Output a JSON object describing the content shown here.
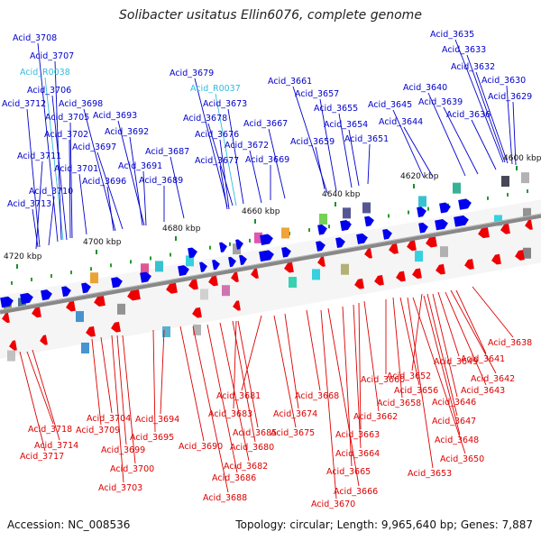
{
  "title": "Solibacter usitatus Ellin6076, complete genome",
  "accession_label": "Accession: NC_008536",
  "summary_label": "Topology: circular; Length: 9,965,640 bp; Genes: 7,887",
  "colors": {
    "forward_label": "#0000cc",
    "reverse_label": "#dd0000",
    "rna_label": "#33bbdd",
    "backbone": "#888888",
    "forward_gene": "#0000ee",
    "reverse_gene": "#ee0000"
  },
  "scale_labels": [
    {
      "text": "4600 kbp"
    },
    {
      "text": "4620 kbp"
    },
    {
      "text": "4640 kbp"
    },
    {
      "text": "4660 kbp"
    },
    {
      "text": "4680 kbp"
    },
    {
      "text": "4700 kbp"
    },
    {
      "text": "4720 kbp"
    }
  ],
  "forward_labels": [
    {
      "text": "Acid_3635",
      "type": "gene"
    },
    {
      "text": "Acid_3633",
      "type": "gene"
    },
    {
      "text": "Acid_3632",
      "type": "gene"
    },
    {
      "text": "Acid_3630",
      "type": "gene"
    },
    {
      "text": "Acid_3629",
      "type": "gene"
    },
    {
      "text": "Acid_3640",
      "type": "gene"
    },
    {
      "text": "Acid_3639",
      "type": "gene"
    },
    {
      "text": "Acid_3636",
      "type": "gene"
    },
    {
      "text": "Acid_3645",
      "type": "gene"
    },
    {
      "text": "Acid_3644",
      "type": "gene"
    },
    {
      "text": "Acid_3661",
      "type": "gene"
    },
    {
      "text": "Acid_3657",
      "type": "gene"
    },
    {
      "text": "Acid_3655",
      "type": "gene"
    },
    {
      "text": "Acid_3654",
      "type": "gene"
    },
    {
      "text": "Acid_3651",
      "type": "gene"
    },
    {
      "text": "Acid_3659",
      "type": "gene"
    },
    {
      "text": "Acid_3679",
      "type": "gene"
    },
    {
      "text": "Acid_R0037",
      "type": "rna"
    },
    {
      "text": "Acid_3673",
      "type": "gene"
    },
    {
      "text": "Acid_3678",
      "type": "gene"
    },
    {
      "text": "Acid_3667",
      "type": "gene"
    },
    {
      "text": "Acid_3676",
      "type": "gene"
    },
    {
      "text": "Acid_3672",
      "type": "gene"
    },
    {
      "text": "Acid_3677",
      "type": "gene"
    },
    {
      "text": "Acid_3669",
      "type": "gene"
    },
    {
      "text": "Acid_3687",
      "type": "gene"
    },
    {
      "text": "Acid_3691",
      "type": "gene"
    },
    {
      "text": "Acid_3689",
      "type": "gene"
    },
    {
      "text": "Acid_3693",
      "type": "gene"
    },
    {
      "text": "Acid_3692",
      "type": "gene"
    },
    {
      "text": "Acid_3697",
      "type": "gene"
    },
    {
      "text": "Acid_3696",
      "type": "gene"
    },
    {
      "text": "Acid_3698",
      "type": "gene"
    },
    {
      "text": "Acid_3705",
      "type": "gene"
    },
    {
      "text": "Acid_3702",
      "type": "gene"
    },
    {
      "text": "Acid_3701",
      "type": "gene"
    },
    {
      "text": "Acid_3706",
      "type": "gene"
    },
    {
      "text": "Acid_R0038",
      "type": "rna"
    },
    {
      "text": "Acid_3707",
      "type": "gene"
    },
    {
      "text": "Acid_3708",
      "type": "gene"
    },
    {
      "text": "Acid_3712",
      "type": "gene"
    },
    {
      "text": "Acid_3711",
      "type": "gene"
    },
    {
      "text": "Acid_3710",
      "type": "gene"
    },
    {
      "text": "Acid_3713",
      "type": "gene"
    }
  ],
  "reverse_labels": [
    {
      "text": "Acid_3638"
    },
    {
      "text": "Acid_3641"
    },
    {
      "text": "Acid_3642"
    },
    {
      "text": "Acid_3649"
    },
    {
      "text": "Acid_3643"
    },
    {
      "text": "Acid_3652"
    },
    {
      "text": "Acid_3646"
    },
    {
      "text": "Acid_3660"
    },
    {
      "text": "Acid_3656"
    },
    {
      "text": "Acid_3647"
    },
    {
      "text": "Acid_3658"
    },
    {
      "text": "Acid_3648"
    },
    {
      "text": "Acid_3662"
    },
    {
      "text": "Acid_3650"
    },
    {
      "text": "Acid_3663"
    },
    {
      "text": "Acid_3653"
    },
    {
      "text": "Acid_3664"
    },
    {
      "text": "Acid_3665"
    },
    {
      "text": "Acid_3666"
    },
    {
      "text": "Acid_3670"
    },
    {
      "text": "Acid_3668"
    },
    {
      "text": "Acid_3674"
    },
    {
      "text": "Acid_3675"
    },
    {
      "text": "Acid_3681"
    },
    {
      "text": "Acid_3683"
    },
    {
      "text": "Acid_3685"
    },
    {
      "text": "Acid_3680"
    },
    {
      "text": "Acid_3682"
    },
    {
      "text": "Acid_3686"
    },
    {
      "text": "Acid_3688"
    },
    {
      "text": "Acid_3690"
    },
    {
      "text": "Acid_3694"
    },
    {
      "text": "Acid_3695"
    },
    {
      "text": "Acid_3704"
    },
    {
      "text": "Acid_3709"
    },
    {
      "text": "Acid_3699"
    },
    {
      "text": "Acid_3700"
    },
    {
      "text": "Acid_3703"
    },
    {
      "text": "Acid_3718"
    },
    {
      "text": "Acid_3714"
    },
    {
      "text": "Acid_3717"
    }
  ]
}
